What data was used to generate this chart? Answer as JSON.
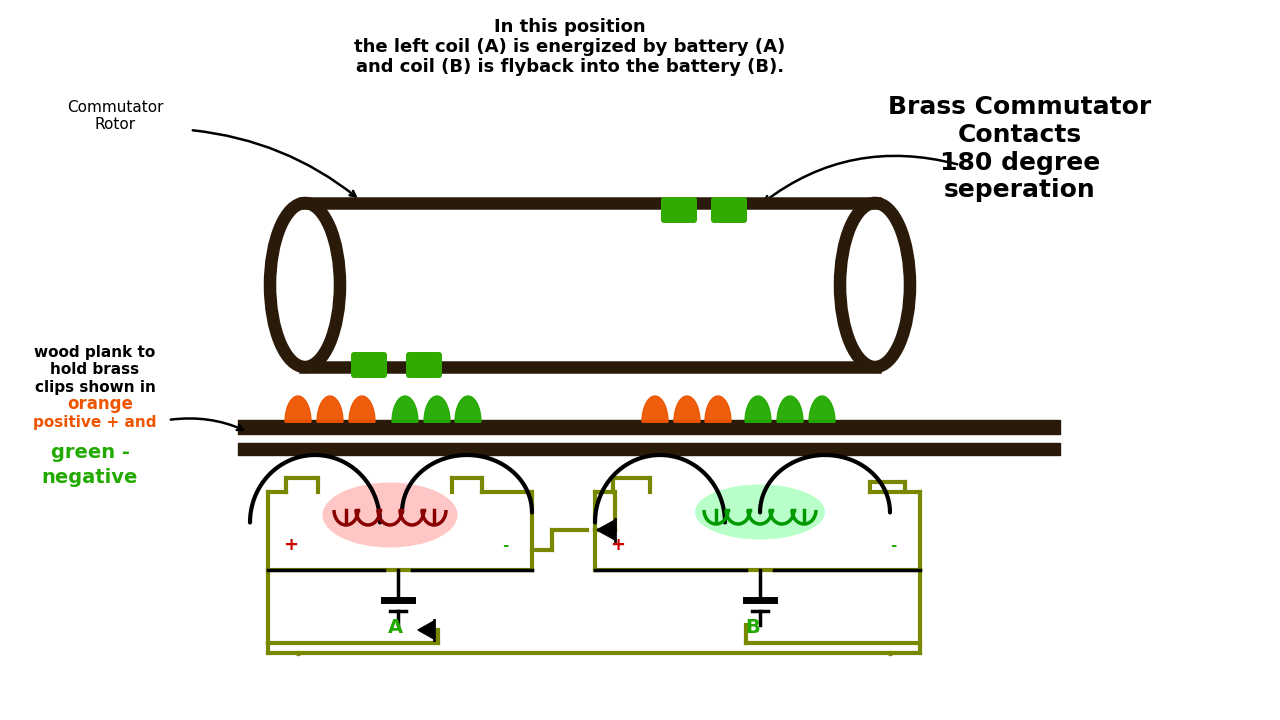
{
  "title_line1": "In this position",
  "title_line2": "the left coil (A) is energized by battery (A)",
  "title_line3": "and coil (B) is flyback into the battery (B).",
  "label_commutator_rotor": "Commutator\nRotor",
  "label_brass": "Brass Commutator\nContacts\n180 degree\nseperation",
  "label_wood": "wood plank to\nhold brass\nclips shown in",
  "label_orange": "orange\npositive + and",
  "label_green": "green -\nnegative",
  "label_A": "A",
  "label_B": "B",
  "label_plus1": "+",
  "label_minus1": "-",
  "label_plus2": "+",
  "label_minus2": "-",
  "bg_color": "#ffffff",
  "text_color": "#000000",
  "orange_color": "#ee5500",
  "green_color": "#22aa00",
  "olive_color": "#7a8800",
  "coil_A_color": "#880000",
  "coil_B_color": "#009900",
  "rotor_color": "#2a1a0a",
  "black": "#000000"
}
